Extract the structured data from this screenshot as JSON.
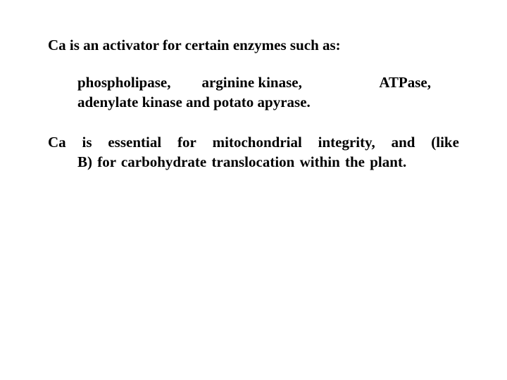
{
  "colors": {
    "background": "#ffffff",
    "text": "#000000"
  },
  "typography": {
    "font_family": "Georgia, serif",
    "font_size_pt": 16,
    "font_weight": 700
  },
  "heading": "Ca is an activator for certain enzymes such as:",
  "enzymes": {
    "row1": {
      "a": "phospholipase,",
      "b": "arginine kinase,",
      "c": "ATPase,"
    },
    "row2": "adenylate kinase  and  potato  apyrase."
  },
  "mito": {
    "line1_words": [
      "Ca",
      "is",
      "essential",
      "for",
      "mitochondrial",
      "integrity,",
      "and",
      "(like"
    ],
    "line2": "B) for carbohydrate  translocation   within the plant."
  }
}
